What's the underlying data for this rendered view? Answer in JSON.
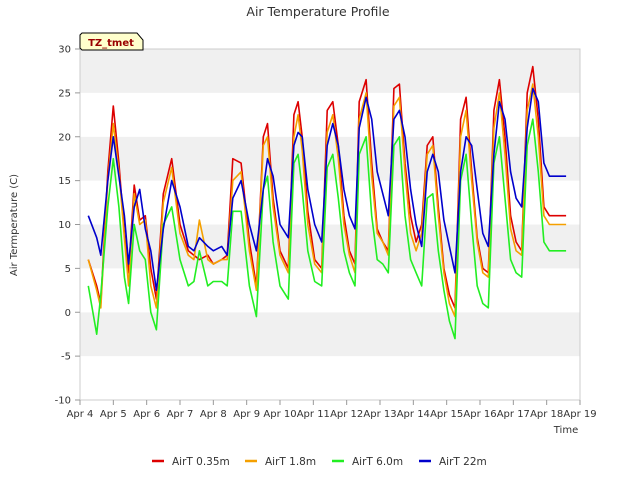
{
  "chart_data": {
    "type": "line",
    "title": "Air Temperature Profile",
    "xlabel": "Time",
    "ylabel": "Air Termperature (C)",
    "site_badge": "TZ_tmet",
    "x_range": [
      "2024-04-04",
      "2024-04-19"
    ],
    "xtick_labels": [
      "Apr 4",
      "Apr 5",
      "Apr 6",
      "Apr 7",
      "Apr 8",
      "Apr 9",
      "Apr 10",
      "Apr 11",
      "Apr 12",
      "Apr 13",
      "Apr 14",
      "Apr 15",
      "Apr 16",
      "Apr 17",
      "Apr 18",
      "Apr 19"
    ],
    "ylim": [
      -10,
      30
    ],
    "yticks": [
      -10,
      -5,
      0,
      5,
      10,
      15,
      20,
      25,
      30
    ],
    "grid": "alternating horizontal bands",
    "legend_position": "bottom",
    "series": [
      {
        "name": "AirT 0.35m",
        "color": "#dd0000",
        "x": [
          "2024-04-04 06:00",
          "2024-04-04 12:00",
          "2024-04-04 15:00",
          "2024-04-04 20:00",
          "2024-04-05 00:00",
          "2024-04-05 04:00",
          "2024-04-05 08:00",
          "2024-04-05 11:00",
          "2024-04-05 15:00",
          "2024-04-05 19:00",
          "2024-04-05 23:00",
          "2024-04-06 03:00",
          "2024-04-06 07:00",
          "2024-04-06 12:00",
          "2024-04-06 18:00",
          "2024-04-07 00:00",
          "2024-04-07 06:00",
          "2024-04-07 10:00",
          "2024-04-07 14:00",
          "2024-04-07 20:00",
          "2024-04-08 00:00",
          "2024-04-08 06:00",
          "2024-04-08 10:00",
          "2024-04-08 14:00",
          "2024-04-08 20:00",
          "2024-04-09 02:00",
          "2024-04-09 07:00",
          "2024-04-09 12:00",
          "2024-04-09 15:00",
          "2024-04-09 19:00",
          "2024-04-10 00:00",
          "2024-04-10 06:00",
          "2024-04-10 10:00",
          "2024-04-10 13:00",
          "2024-04-10 16:00",
          "2024-04-10 20:00",
          "2024-04-11 01:00",
          "2024-04-11 06:00",
          "2024-04-11 10:00",
          "2024-04-11 14:00",
          "2024-04-11 18:00",
          "2024-04-11 22:00",
          "2024-04-12 02:00",
          "2024-04-12 06:00",
          "2024-04-12 09:00",
          "2024-04-12 14:00",
          "2024-04-12 18:00",
          "2024-04-12 22:00",
          "2024-04-13 02:00",
          "2024-04-13 06:00",
          "2024-04-13 10:00",
          "2024-04-13 14:00",
          "2024-04-13 18:00",
          "2024-04-13 22:00",
          "2024-04-14 02:00",
          "2024-04-14 06:00",
          "2024-04-14 10:00",
          "2024-04-14 14:00",
          "2024-04-14 18:00",
          "2024-04-14 22:00",
          "2024-04-15 02:00",
          "2024-04-15 06:00",
          "2024-04-15 10:00",
          "2024-04-15 14:00",
          "2024-04-15 18:00",
          "2024-04-15 22:00",
          "2024-04-16 02:00",
          "2024-04-16 06:00",
          "2024-04-16 10:00",
          "2024-04-16 14:00",
          "2024-04-16 18:00",
          "2024-04-16 22:00",
          "2024-04-17 02:00",
          "2024-04-17 06:00",
          "2024-04-17 10:00",
          "2024-04-17 14:00",
          "2024-04-17 18:00",
          "2024-04-17 22:00",
          "2024-04-18 02:00",
          "2024-04-18 06:00",
          "2024-04-18 10:00",
          "2024-04-18 14:00"
        ],
        "y": [
          6.0,
          3.0,
          1.0,
          16.0,
          23.5,
          17.0,
          9.0,
          4.5,
          14.5,
          10.5,
          11.0,
          5.0,
          1.5,
          13.5,
          17.5,
          10.0,
          7.0,
          6.5,
          6.0,
          6.5,
          5.5,
          6.0,
          6.5,
          17.5,
          17.0,
          8.0,
          3.0,
          20.0,
          21.5,
          13.0,
          7.0,
          5.0,
          22.5,
          24.0,
          20.0,
          11.5,
          6.0,
          5.0,
          23.0,
          24.0,
          19.0,
          11.0,
          7.0,
          5.5,
          24.0,
          26.5,
          17.0,
          9.5,
          8.0,
          7.0,
          25.5,
          26.0,
          17.0,
          11.0,
          8.0,
          10.0,
          19.0,
          20.0,
          12.0,
          5.0,
          2.0,
          0.5,
          22.0,
          24.5,
          16.0,
          8.5,
          5.0,
          4.5,
          23.0,
          26.5,
          20.0,
          11.0,
          8.0,
          7.0,
          25.0,
          28.0,
          22.0,
          12.0,
          11.0,
          11.0,
          11.0,
          11.0
        ]
      },
      {
        "name": "AirT 1.8m",
        "color": "#f5a000",
        "x": [
          "2024-04-04 06:00",
          "2024-04-04 12:00",
          "2024-04-04 15:00",
          "2024-04-04 20:00",
          "2024-04-05 00:00",
          "2024-04-05 04:00",
          "2024-04-05 08:00",
          "2024-04-05 11:00",
          "2024-04-05 15:00",
          "2024-04-05 19:00",
          "2024-04-05 23:00",
          "2024-04-06 03:00",
          "2024-04-06 07:00",
          "2024-04-06 12:00",
          "2024-04-06 18:00",
          "2024-04-07 00:00",
          "2024-04-07 06:00",
          "2024-04-07 10:00",
          "2024-04-07 14:00",
          "2024-04-07 20:00",
          "2024-04-08 00:00",
          "2024-04-08 06:00",
          "2024-04-08 10:00",
          "2024-04-08 14:00",
          "2024-04-08 20:00",
          "2024-04-09 02:00",
          "2024-04-09 07:00",
          "2024-04-09 12:00",
          "2024-04-09 15:00",
          "2024-04-09 19:00",
          "2024-04-10 00:00",
          "2024-04-10 06:00",
          "2024-04-10 10:00",
          "2024-04-10 13:00",
          "2024-04-10 16:00",
          "2024-04-10 20:00",
          "2024-04-11 01:00",
          "2024-04-11 06:00",
          "2024-04-11 10:00",
          "2024-04-11 14:00",
          "2024-04-11 18:00",
          "2024-04-11 22:00",
          "2024-04-12 02:00",
          "2024-04-12 06:00",
          "2024-04-12 09:00",
          "2024-04-12 14:00",
          "2024-04-12 18:00",
          "2024-04-12 22:00",
          "2024-04-13 02:00",
          "2024-04-13 06:00",
          "2024-04-13 10:00",
          "2024-04-13 14:00",
          "2024-04-13 18:00",
          "2024-04-13 22:00",
          "2024-04-14 02:00",
          "2024-04-14 06:00",
          "2024-04-14 10:00",
          "2024-04-14 14:00",
          "2024-04-14 18:00",
          "2024-04-14 22:00",
          "2024-04-15 02:00",
          "2024-04-15 06:00",
          "2024-04-15 10:00",
          "2024-04-15 14:00",
          "2024-04-15 18:00",
          "2024-04-15 22:00",
          "2024-04-16 02:00",
          "2024-04-16 06:00",
          "2024-04-16 10:00",
          "2024-04-16 14:00",
          "2024-04-16 18:00",
          "2024-04-16 22:00",
          "2024-04-17 02:00",
          "2024-04-17 06:00",
          "2024-04-17 10:00",
          "2024-04-17 14:00",
          "2024-04-17 18:00",
          "2024-04-17 22:00",
          "2024-04-18 02:00",
          "2024-04-18 06:00",
          "2024-04-18 10:00",
          "2024-04-18 14:00"
        ],
        "y": [
          6.0,
          2.5,
          0.5,
          15.0,
          21.5,
          16.0,
          8.5,
          3.0,
          13.5,
          10.0,
          10.5,
          3.0,
          0.5,
          12.5,
          16.5,
          9.0,
          6.5,
          6.0,
          10.5,
          6.0,
          5.5,
          6.0,
          6.0,
          15.0,
          16.0,
          7.0,
          2.5,
          19.0,
          20.0,
          12.0,
          6.5,
          4.5,
          20.0,
          22.5,
          18.5,
          10.0,
          5.5,
          4.5,
          20.5,
          22.5,
          17.5,
          10.0,
          6.5,
          4.5,
          22.0,
          25.0,
          15.5,
          9.0,
          8.0,
          6.5,
          23.5,
          24.5,
          16.0,
          9.0,
          7.0,
          9.0,
          18.0,
          19.0,
          11.0,
          4.5,
          1.0,
          -0.5,
          20.0,
          23.0,
          15.0,
          8.0,
          4.5,
          4.0,
          21.0,
          25.0,
          18.0,
          9.5,
          7.0,
          6.5,
          23.0,
          26.0,
          20.0,
          11.0,
          10.0,
          10.0,
          10.0,
          10.0
        ]
      },
      {
        "name": "AirT 6.0m",
        "color": "#22ee22",
        "x": [
          "2024-04-04 06:00",
          "2024-04-04 12:00",
          "2024-04-04 15:00",
          "2024-04-04 20:00",
          "2024-04-05 00:00",
          "2024-04-05 04:00",
          "2024-04-05 08:00",
          "2024-04-05 11:00",
          "2024-04-05 15:00",
          "2024-04-05 19:00",
          "2024-04-05 23:00",
          "2024-04-06 03:00",
          "2024-04-06 07:00",
          "2024-04-06 12:00",
          "2024-04-06 18:00",
          "2024-04-07 00:00",
          "2024-04-07 06:00",
          "2024-04-07 10:00",
          "2024-04-07 14:00",
          "2024-04-07 20:00",
          "2024-04-08 00:00",
          "2024-04-08 06:00",
          "2024-04-08 10:00",
          "2024-04-08 14:00",
          "2024-04-08 20:00",
          "2024-04-09 02:00",
          "2024-04-09 07:00",
          "2024-04-09 12:00",
          "2024-04-09 15:00",
          "2024-04-09 19:00",
          "2024-04-10 00:00",
          "2024-04-10 06:00",
          "2024-04-10 10:00",
          "2024-04-10 13:00",
          "2024-04-10 16:00",
          "2024-04-10 20:00",
          "2024-04-11 01:00",
          "2024-04-11 06:00",
          "2024-04-11 10:00",
          "2024-04-11 14:00",
          "2024-04-11 18:00",
          "2024-04-11 22:00",
          "2024-04-12 02:00",
          "2024-04-12 06:00",
          "2024-04-12 09:00",
          "2024-04-12 14:00",
          "2024-04-12 18:00",
          "2024-04-12 22:00",
          "2024-04-13 02:00",
          "2024-04-13 06:00",
          "2024-04-13 10:00",
          "2024-04-13 14:00",
          "2024-04-13 18:00",
          "2024-04-13 22:00",
          "2024-04-14 02:00",
          "2024-04-14 06:00",
          "2024-04-14 10:00",
          "2024-04-14 14:00",
          "2024-04-14 18:00",
          "2024-04-14 22:00",
          "2024-04-15 02:00",
          "2024-04-15 06:00",
          "2024-04-15 10:00",
          "2024-04-15 14:00",
          "2024-04-15 18:00",
          "2024-04-15 22:00",
          "2024-04-16 02:00",
          "2024-04-16 06:00",
          "2024-04-16 10:00",
          "2024-04-16 14:00",
          "2024-04-16 18:00",
          "2024-04-16 22:00",
          "2024-04-17 02:00",
          "2024-04-17 06:00",
          "2024-04-17 10:00",
          "2024-04-17 14:00",
          "2024-04-17 18:00",
          "2024-04-17 22:00",
          "2024-04-18 02:00",
          "2024-04-18 06:00",
          "2024-04-18 10:00",
          "2024-04-18 14:00"
        ],
        "y": [
          3.0,
          -2.5,
          2.0,
          12.0,
          17.5,
          12.0,
          4.0,
          1.0,
          10.0,
          7.0,
          6.0,
          0.0,
          -2.0,
          10.0,
          12.0,
          6.0,
          3.0,
          3.5,
          7.0,
          3.0,
          3.5,
          3.5,
          3.0,
          11.5,
          11.5,
          3.0,
          -0.5,
          14.0,
          15.5,
          8.0,
          3.0,
          1.5,
          17.0,
          18.0,
          14.0,
          7.0,
          3.5,
          3.0,
          16.5,
          18.0,
          13.0,
          7.0,
          4.5,
          3.0,
          18.0,
          20.0,
          11.0,
          6.0,
          5.5,
          4.5,
          19.0,
          20.0,
          11.0,
          6.0,
          4.5,
          3.0,
          13.0,
          13.5,
          7.0,
          2.5,
          -1.0,
          -3.0,
          15.0,
          18.0,
          10.0,
          3.0,
          1.0,
          0.5,
          17.0,
          20.0,
          13.0,
          6.0,
          4.5,
          4.0,
          19.0,
          22.0,
          16.0,
          8.0,
          7.0,
          7.0,
          7.0,
          7.0
        ]
      },
      {
        "name": "AirT 22m",
        "color": "#0000cc",
        "x": [
          "2024-04-04 06:00",
          "2024-04-04 12:00",
          "2024-04-04 15:00",
          "2024-04-04 20:00",
          "2024-04-05 00:00",
          "2024-04-05 04:00",
          "2024-04-05 08:00",
          "2024-04-05 11:00",
          "2024-04-05 15:00",
          "2024-04-05 19:00",
          "2024-04-05 23:00",
          "2024-04-06 03:00",
          "2024-04-06 07:00",
          "2024-04-06 12:00",
          "2024-04-06 18:00",
          "2024-04-07 00:00",
          "2024-04-07 06:00",
          "2024-04-07 10:00",
          "2024-04-07 14:00",
          "2024-04-07 20:00",
          "2024-04-08 00:00",
          "2024-04-08 06:00",
          "2024-04-08 10:00",
          "2024-04-08 14:00",
          "2024-04-08 20:00",
          "2024-04-09 02:00",
          "2024-04-09 07:00",
          "2024-04-09 12:00",
          "2024-04-09 15:00",
          "2024-04-09 19:00",
          "2024-04-10 00:00",
          "2024-04-10 06:00",
          "2024-04-10 10:00",
          "2024-04-10 13:00",
          "2024-04-10 16:00",
          "2024-04-10 20:00",
          "2024-04-11 01:00",
          "2024-04-11 06:00",
          "2024-04-11 10:00",
          "2024-04-11 14:00",
          "2024-04-11 18:00",
          "2024-04-11 22:00",
          "2024-04-12 02:00",
          "2024-04-12 06:00",
          "2024-04-12 09:00",
          "2024-04-12 14:00",
          "2024-04-12 18:00",
          "2024-04-12 22:00",
          "2024-04-13 02:00",
          "2024-04-13 06:00",
          "2024-04-13 10:00",
          "2024-04-13 14:00",
          "2024-04-13 18:00",
          "2024-04-13 22:00",
          "2024-04-14 02:00",
          "2024-04-14 06:00",
          "2024-04-14 10:00",
          "2024-04-14 14:00",
          "2024-04-14 18:00",
          "2024-04-14 22:00",
          "2024-04-15 02:00",
          "2024-04-15 06:00",
          "2024-04-15 10:00",
          "2024-04-15 14:00",
          "2024-04-15 18:00",
          "2024-04-15 22:00",
          "2024-04-16 02:00",
          "2024-04-16 06:00",
          "2024-04-16 10:00",
          "2024-04-16 14:00",
          "2024-04-16 18:00",
          "2024-04-16 22:00",
          "2024-04-17 02:00",
          "2024-04-17 06:00",
          "2024-04-17 10:00",
          "2024-04-17 14:00",
          "2024-04-17 18:00",
          "2024-04-17 22:00",
          "2024-04-18 02:00",
          "2024-04-18 06:00",
          "2024-04-18 10:00",
          "2024-04-18 14:00"
        ],
        "y": [
          11.0,
          8.5,
          6.5,
          15.0,
          20.0,
          15.5,
          11.0,
          5.5,
          12.0,
          14.0,
          9.5,
          7.0,
          2.5,
          9.5,
          15.0,
          12.0,
          7.5,
          7.0,
          8.5,
          7.5,
          7.0,
          7.5,
          6.5,
          13.0,
          15.0,
          10.0,
          7.0,
          14.0,
          17.5,
          15.5,
          10.0,
          8.5,
          19.0,
          20.5,
          20.0,
          14.0,
          10.0,
          8.0,
          19.0,
          21.5,
          19.0,
          14.0,
          11.0,
          9.5,
          21.0,
          24.5,
          22.0,
          16.0,
          13.5,
          11.0,
          22.0,
          23.0,
          20.0,
          14.0,
          10.0,
          7.5,
          16.0,
          18.0,
          16.0,
          10.5,
          7.5,
          4.5,
          16.0,
          20.0,
          19.0,
          14.0,
          9.0,
          7.5,
          18.0,
          24.0,
          22.0,
          16.0,
          13.0,
          12.0,
          21.0,
          25.5,
          24.0,
          17.0,
          15.5,
          15.5,
          15.5,
          15.5
        ]
      }
    ]
  }
}
